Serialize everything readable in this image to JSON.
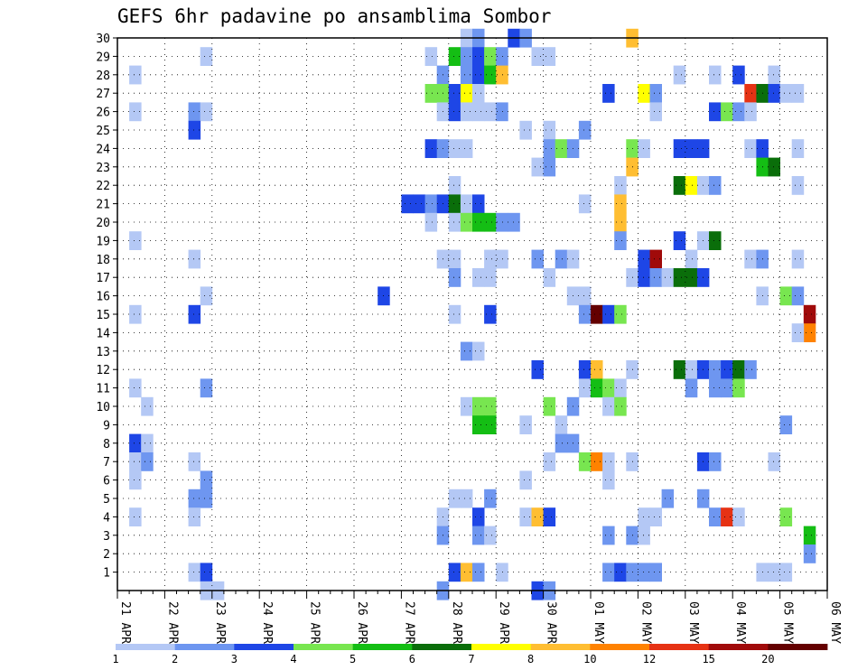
{
  "chart_data": {
    "type": "heatmap",
    "title": "GEFS 6hr padavine po ansamblima Sombor",
    "x_labels": [
      "21 APR",
      "22 APR",
      "23 APR",
      "24 APR",
      "25 APR",
      "26 APR",
      "27 APR",
      "28 APR",
      "29 APR",
      "30 APR",
      "01 MAY",
      "02 MAY",
      "03 MAY",
      "04 MAY",
      "05 MAY",
      "06 MAY"
    ],
    "x_steps_per_label": 4,
    "y_labels": [
      1,
      2,
      3,
      4,
      5,
      6,
      7,
      8,
      9,
      10,
      11,
      12,
      13,
      14,
      15,
      16,
      17,
      18,
      19,
      20,
      21,
      22,
      23,
      24,
      25,
      26,
      27,
      28,
      29,
      30
    ],
    "ylim": [
      0,
      30
    ],
    "grid": true,
    "legend": {
      "placement": "bottom",
      "colors": [
        "#b4c8f5",
        "#6e96f0",
        "#1e46e6",
        "#78e650",
        "#14be14",
        "#0a6e0a",
        "#ffff00",
        "#ffbe32",
        "#ff8200",
        "#e63214",
        "#a00a0a",
        "#640000"
      ],
      "ticks": [
        "1",
        "2",
        "3",
        "4",
        "5",
        "6",
        "7",
        "8",
        "10",
        "12",
        "15",
        "20"
      ]
    },
    "cells": [
      [
        29,
        30,
        0
      ],
      [
        29,
        29,
        0
      ],
      [
        30,
        30,
        1
      ],
      [
        33,
        30,
        2
      ],
      [
        34,
        30,
        1
      ],
      [
        43,
        30,
        7
      ],
      [
        7,
        29,
        0
      ],
      [
        26,
        29,
        0
      ],
      [
        28,
        29,
        4
      ],
      [
        29,
        29,
        1
      ],
      [
        30,
        29,
        2
      ],
      [
        31,
        29,
        3
      ],
      [
        32,
        29,
        1
      ],
      [
        35,
        29,
        0
      ],
      [
        36,
        29,
        0
      ],
      [
        1,
        28,
        0
      ],
      [
        27,
        28,
        1
      ],
      [
        29,
        28,
        1
      ],
      [
        30,
        28,
        2
      ],
      [
        31,
        28,
        4
      ],
      [
        32,
        28,
        7
      ],
      [
        47,
        28,
        0
      ],
      [
        50,
        28,
        0
      ],
      [
        52,
        28,
        2
      ],
      [
        55,
        28,
        0
      ],
      [
        26,
        27,
        3
      ],
      [
        27,
        27,
        3
      ],
      [
        28,
        27,
        2
      ],
      [
        29,
        27,
        6
      ],
      [
        30,
        27,
        0
      ],
      [
        41,
        27,
        2
      ],
      [
        44,
        27,
        6
      ],
      [
        45,
        27,
        1
      ],
      [
        53,
        27,
        9
      ],
      [
        54,
        27,
        5
      ],
      [
        55,
        27,
        2
      ],
      [
        56,
        27,
        0
      ],
      [
        57,
        27,
        0
      ],
      [
        1,
        26,
        0
      ],
      [
        6,
        26,
        1
      ],
      [
        7,
        26,
        0
      ],
      [
        27,
        26,
        0
      ],
      [
        28,
        26,
        2
      ],
      [
        29,
        26,
        0
      ],
      [
        30,
        26,
        0
      ],
      [
        31,
        26,
        0
      ],
      [
        32,
        26,
        1
      ],
      [
        45,
        26,
        0
      ],
      [
        50,
        26,
        2
      ],
      [
        51,
        26,
        3
      ],
      [
        52,
        26,
        1
      ],
      [
        53,
        26,
        0
      ],
      [
        6,
        25,
        2
      ],
      [
        34,
        25,
        0
      ],
      [
        36,
        25,
        0
      ],
      [
        39,
        25,
        1
      ],
      [
        26,
        24,
        2
      ],
      [
        27,
        24,
        1
      ],
      [
        28,
        24,
        0
      ],
      [
        29,
        24,
        0
      ],
      [
        36,
        24,
        1
      ],
      [
        37,
        24,
        3
      ],
      [
        38,
        24,
        1
      ],
      [
        43,
        24,
        3
      ],
      [
        44,
        24,
        0
      ],
      [
        47,
        24,
        2
      ],
      [
        48,
        24,
        2
      ],
      [
        49,
        24,
        2
      ],
      [
        53,
        24,
        0
      ],
      [
        54,
        24,
        2
      ],
      [
        57,
        24,
        0
      ],
      [
        35,
        23,
        0
      ],
      [
        36,
        23,
        1
      ],
      [
        43,
        23,
        7
      ],
      [
        54,
        23,
        4
      ],
      [
        55,
        23,
        5
      ],
      [
        28,
        22,
        0
      ],
      [
        42,
        22,
        0
      ],
      [
        47,
        22,
        5
      ],
      [
        48,
        22,
        6
      ],
      [
        49,
        22,
        0
      ],
      [
        50,
        22,
        1
      ],
      [
        57,
        22,
        0
      ],
      [
        24,
        21,
        2
      ],
      [
        25,
        21,
        2
      ],
      [
        26,
        21,
        1
      ],
      [
        27,
        21,
        2
      ],
      [
        28,
        21,
        5
      ],
      [
        29,
        21,
        0
      ],
      [
        30,
        21,
        2
      ],
      [
        39,
        21,
        0
      ],
      [
        42,
        21,
        7
      ],
      [
        26,
        20,
        0
      ],
      [
        28,
        20,
        0
      ],
      [
        29,
        20,
        3
      ],
      [
        30,
        20,
        4
      ],
      [
        31,
        20,
        4
      ],
      [
        32,
        20,
        1
      ],
      [
        33,
        20,
        1
      ],
      [
        42,
        20,
        7
      ],
      [
        1,
        19,
        0
      ],
      [
        42,
        19,
        1
      ],
      [
        47,
        19,
        2
      ],
      [
        49,
        19,
        0
      ],
      [
        50,
        19,
        5
      ],
      [
        6,
        18,
        0
      ],
      [
        27,
        18,
        0
      ],
      [
        28,
        18,
        0
      ],
      [
        31,
        18,
        0
      ],
      [
        32,
        18,
        0
      ],
      [
        35,
        18,
        1
      ],
      [
        37,
        18,
        1
      ],
      [
        38,
        18,
        0
      ],
      [
        44,
        18,
        2
      ],
      [
        45,
        18,
        10
      ],
      [
        48,
        18,
        0
      ],
      [
        53,
        18,
        0
      ],
      [
        54,
        18,
        1
      ],
      [
        57,
        18,
        0
      ],
      [
        28,
        17,
        1
      ],
      [
        30,
        17,
        0
      ],
      [
        31,
        17,
        0
      ],
      [
        36,
        17,
        0
      ],
      [
        43,
        17,
        0
      ],
      [
        44,
        17,
        2
      ],
      [
        45,
        17,
        1
      ],
      [
        46,
        17,
        0
      ],
      [
        47,
        17,
        5
      ],
      [
        48,
        17,
        5
      ],
      [
        49,
        17,
        2
      ],
      [
        7,
        16,
        0
      ],
      [
        22,
        16,
        2
      ],
      [
        38,
        16,
        0
      ],
      [
        39,
        16,
        0
      ],
      [
        54,
        16,
        0
      ],
      [
        56,
        16,
        3
      ],
      [
        57,
        16,
        1
      ],
      [
        1,
        15,
        0
      ],
      [
        6,
        15,
        2
      ],
      [
        28,
        15,
        0
      ],
      [
        31,
        15,
        2
      ],
      [
        39,
        15,
        1
      ],
      [
        40,
        15,
        11
      ],
      [
        41,
        15,
        2
      ],
      [
        42,
        15,
        3
      ],
      [
        58,
        15,
        10
      ],
      [
        58,
        14,
        8
      ],
      [
        57,
        14,
        0
      ],
      [
        29,
        13,
        1
      ],
      [
        30,
        13,
        0
      ],
      [
        35,
        12,
        2
      ],
      [
        39,
        12,
        2
      ],
      [
        40,
        12,
        7
      ],
      [
        43,
        12,
        0
      ],
      [
        47,
        12,
        5
      ],
      [
        48,
        12,
        0
      ],
      [
        49,
        12,
        2
      ],
      [
        50,
        12,
        1
      ],
      [
        51,
        12,
        2
      ],
      [
        52,
        12,
        5
      ],
      [
        53,
        12,
        1
      ],
      [
        1,
        11,
        0
      ],
      [
        7,
        11,
        1
      ],
      [
        39,
        11,
        0
      ],
      [
        40,
        11,
        4
      ],
      [
        41,
        11,
        3
      ],
      [
        42,
        11,
        0
      ],
      [
        48,
        11,
        1
      ],
      [
        50,
        11,
        1
      ],
      [
        51,
        11,
        1
      ],
      [
        52,
        11,
        3
      ],
      [
        2,
        10,
        0
      ],
      [
        29,
        10,
        0
      ],
      [
        30,
        10,
        3
      ],
      [
        31,
        10,
        3
      ],
      [
        36,
        10,
        3
      ],
      [
        38,
        10,
        1
      ],
      [
        41,
        10,
        0
      ],
      [
        42,
        10,
        3
      ],
      [
        30,
        9,
        4
      ],
      [
        31,
        9,
        4
      ],
      [
        34,
        9,
        0
      ],
      [
        37,
        9,
        0
      ],
      [
        56,
        9,
        1
      ],
      [
        1,
        8,
        2
      ],
      [
        2,
        8,
        0
      ],
      [
        37,
        8,
        1
      ],
      [
        38,
        8,
        1
      ],
      [
        1,
        7,
        0
      ],
      [
        2,
        7,
        1
      ],
      [
        6,
        7,
        0
      ],
      [
        36,
        7,
        0
      ],
      [
        39,
        7,
        3
      ],
      [
        40,
        7,
        8
      ],
      [
        41,
        7,
        0
      ],
      [
        43,
        7,
        0
      ],
      [
        49,
        7,
        2
      ],
      [
        50,
        7,
        1
      ],
      [
        55,
        7,
        0
      ],
      [
        1,
        6,
        0
      ],
      [
        7,
        6,
        1
      ],
      [
        34,
        6,
        0
      ],
      [
        41,
        6,
        0
      ],
      [
        6,
        5,
        1
      ],
      [
        7,
        5,
        1
      ],
      [
        28,
        5,
        0
      ],
      [
        29,
        5,
        0
      ],
      [
        31,
        5,
        1
      ],
      [
        46,
        5,
        1
      ],
      [
        49,
        5,
        1
      ],
      [
        1,
        4,
        0
      ],
      [
        6,
        4,
        0
      ],
      [
        27,
        4,
        0
      ],
      [
        30,
        4,
        2
      ],
      [
        34,
        4,
        0
      ],
      [
        35,
        4,
        7
      ],
      [
        36,
        4,
        2
      ],
      [
        44,
        4,
        0
      ],
      [
        45,
        4,
        0
      ],
      [
        50,
        4,
        1
      ],
      [
        51,
        4,
        9
      ],
      [
        52,
        4,
        0
      ],
      [
        56,
        4,
        3
      ],
      [
        27,
        3,
        1
      ],
      [
        30,
        3,
        1
      ],
      [
        31,
        3,
        0
      ],
      [
        41,
        3,
        1
      ],
      [
        43,
        3,
        1
      ],
      [
        44,
        3,
        0
      ],
      [
        58,
        3,
        4
      ],
      [
        58,
        2,
        1
      ],
      [
        6,
        1,
        0
      ],
      [
        7,
        1,
        2
      ],
      [
        28,
        1,
        2
      ],
      [
        29,
        1,
        7
      ],
      [
        30,
        1,
        1
      ],
      [
        32,
        1,
        0
      ],
      [
        41,
        1,
        1
      ],
      [
        42,
        1,
        2
      ],
      [
        43,
        1,
        1
      ],
      [
        44,
        1,
        1
      ],
      [
        45,
        1,
        1
      ],
      [
        54,
        1,
        0
      ],
      [
        55,
        1,
        0
      ],
      [
        56,
        1,
        0
      ],
      [
        7,
        0,
        0
      ],
      [
        8,
        0,
        0
      ],
      [
        27,
        0,
        1
      ],
      [
        35,
        0,
        2
      ],
      [
        36,
        0,
        1
      ]
    ]
  }
}
